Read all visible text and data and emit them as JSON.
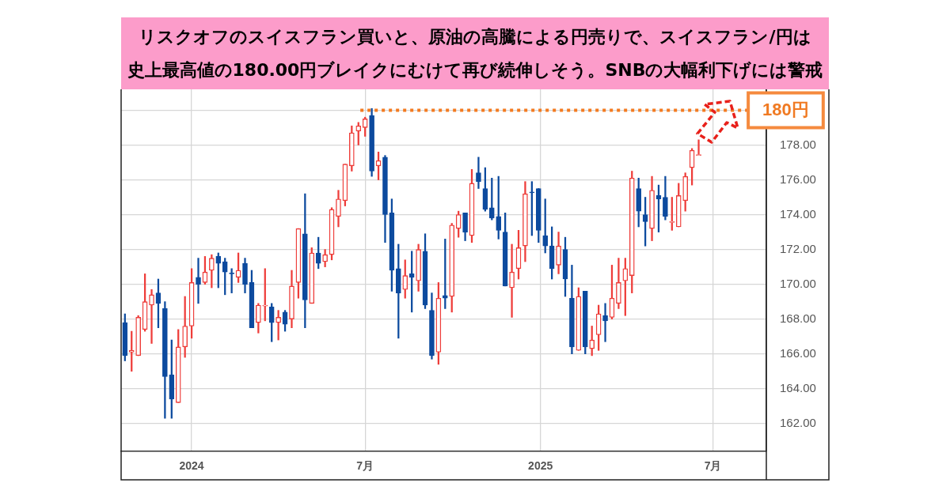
{
  "chart_data": {
    "type": "candlestick",
    "title": "リスクオフのスイスフラン買いと、原油の高騰による円売りで、スイスフラン/円は史上最高値の180.00円ブレイクにむけて再び続伸しそう。SNBの大幅利下げには警戒",
    "x": [
      "2023-10-23",
      "2023-10-30",
      "2023-11-06",
      "2023-11-13",
      "2023-11-20",
      "2023-11-27",
      "2023-12-04",
      "2023-12-11",
      "2023-12-18",
      "2023-12-25",
      "2024-01-01",
      "2024-01-08",
      "2024-01-15",
      "2024-01-22",
      "2024-01-29",
      "2024-02-05",
      "2024-02-12",
      "2024-02-19",
      "2024-02-26",
      "2024-03-04",
      "2024-03-11",
      "2024-03-18",
      "2024-03-25",
      "2024-04-01",
      "2024-04-08",
      "2024-04-15",
      "2024-04-22",
      "2024-04-29",
      "2024-05-06",
      "2024-05-13",
      "2024-05-20",
      "2024-05-27",
      "2024-06-03",
      "2024-06-10",
      "2024-06-17",
      "2024-06-24",
      "2024-07-01",
      "2024-07-08",
      "2024-07-15",
      "2024-07-22",
      "2024-07-29",
      "2024-08-05",
      "2024-08-12",
      "2024-08-19",
      "2024-08-26",
      "2024-09-02",
      "2024-09-09",
      "2024-09-16",
      "2024-09-23",
      "2024-09-30",
      "2024-10-07",
      "2024-10-14",
      "2024-10-21",
      "2024-10-28",
      "2024-11-04",
      "2024-11-11",
      "2024-11-18",
      "2024-11-25",
      "2024-12-02",
      "2024-12-09",
      "2024-12-16",
      "2024-12-23",
      "2024-12-30",
      "2025-01-06",
      "2025-01-13",
      "2025-01-20",
      "2025-01-27",
      "2025-02-03",
      "2025-02-10",
      "2025-02-17",
      "2025-02-24",
      "2025-03-03",
      "2025-03-10",
      "2025-03-17",
      "2025-03-24",
      "2025-03-31",
      "2025-04-07",
      "2025-04-14",
      "2025-04-21",
      "2025-04-28",
      "2025-05-05",
      "2025-05-12",
      "2025-05-19",
      "2025-05-26",
      "2025-06-02",
      "2025-06-09",
      "2025-06-16"
    ],
    "ohlc": [
      [
        167.8,
        168.3,
        165.6,
        165.9
      ],
      [
        166.1,
        167.3,
        165.0,
        166.2
      ],
      [
        165.9,
        168.2,
        165.9,
        168.1
      ],
      [
        167.4,
        170.6,
        167.3,
        169.0
      ],
      [
        168.8,
        169.7,
        166.6,
        169.4
      ],
      [
        169.5,
        170.3,
        167.5,
        168.9
      ],
      [
        168.6,
        169.0,
        162.3,
        164.7
      ],
      [
        164.8,
        166.8,
        162.3,
        163.4
      ],
      [
        163.2,
        167.4,
        163.2,
        166.4
      ],
      [
        166.4,
        169.3,
        165.8,
        167.6
      ],
      [
        167.6,
        170.9,
        166.9,
        170.1
      ],
      [
        170.4,
        171.5,
        168.9,
        170.0
      ],
      [
        170.1,
        171.6,
        170.0,
        170.7
      ],
      [
        170.8,
        171.7,
        169.8,
        171.5
      ],
      [
        171.6,
        171.8,
        169.8,
        171.2
      ],
      [
        171.3,
        171.5,
        169.4,
        170.7
      ],
      [
        170.65,
        170.9,
        169.5,
        170.6
      ],
      [
        170.4,
        171.8,
        170.1,
        170.8
      ],
      [
        171.2,
        171.5,
        169.5,
        170.0
      ],
      [
        170.1,
        170.8,
        167.5,
        167.5
      ],
      [
        167.8,
        168.9,
        167.2,
        168.8
      ],
      [
        168.75,
        170.9,
        167.9,
        168.8
      ],
      [
        168.7,
        168.9,
        166.7,
        167.8
      ],
      [
        167.8,
        168.5,
        166.8,
        168.1
      ],
      [
        168.4,
        168.5,
        167.3,
        167.7
      ],
      [
        168.0,
        170.8,
        167.5,
        169.9
      ],
      [
        170.1,
        173.2,
        169.2,
        173.2
      ],
      [
        172.9,
        175.2,
        167.5,
        169.1
      ],
      [
        168.9,
        172.1,
        168.9,
        171.8
      ],
      [
        171.8,
        172.7,
        170.9,
        171.2
      ],
      [
        171.3,
        172.0,
        171.0,
        171.7
      ],
      [
        171.7,
        174.4,
        171.4,
        174.3
      ],
      [
        173.9,
        175.4,
        173.3,
        174.9
      ],
      [
        174.8,
        176.9,
        174.5,
        176.9
      ],
      [
        176.8,
        179.1,
        176.5,
        178.7
      ],
      [
        178.8,
        179.3,
        178.0,
        179.1
      ],
      [
        179.0,
        179.6,
        178.5,
        179.5
      ],
      [
        179.7,
        180.1,
        176.2,
        176.5
      ],
      [
        176.8,
        177.6,
        176.0,
        177.1
      ],
      [
        177.3,
        177.4,
        172.4,
        174.0
      ],
      [
        174.1,
        174.9,
        169.6,
        170.8
      ],
      [
        170.9,
        172.3,
        166.9,
        169.5
      ],
      [
        169.7,
        171.4,
        169.2,
        170.5
      ],
      [
        170.6,
        171.9,
        168.4,
        170.4
      ],
      [
        170.2,
        172.3,
        169.6,
        172.0
      ],
      [
        171.9,
        172.9,
        168.6,
        168.8
      ],
      [
        168.5,
        169.5,
        165.7,
        165.9
      ],
      [
        166.1,
        170.1,
        165.4,
        169.2
      ],
      [
        169.35,
        172.6,
        168.6,
        169.2
      ],
      [
        169.3,
        173.5,
        168.4,
        173.4
      ],
      [
        173.2,
        174.2,
        172.7,
        174.0
      ],
      [
        174.1,
        174.1,
        172.5,
        173.0
      ],
      [
        172.8,
        176.6,
        172.4,
        175.8
      ],
      [
        176.4,
        177.3,
        175.5,
        175.9
      ],
      [
        175.5,
        176.7,
        174.2,
        174.3
      ],
      [
        174.4,
        176.1,
        173.7,
        173.8
      ],
      [
        173.9,
        176.2,
        172.6,
        173.1
      ],
      [
        173.0,
        174.1,
        169.9,
        169.9
      ],
      [
        169.8,
        172.3,
        168.1,
        170.7
      ],
      [
        170.9,
        173.1,
        170.3,
        172.1
      ],
      [
        172.2,
        175.9,
        171.3,
        175.2
      ],
      [
        175.3,
        175.9,
        172.8,
        175.25
      ],
      [
        175.5,
        175.5,
        172.4,
        173.1
      ],
      [
        172.8,
        174.9,
        171.8,
        172.2
      ],
      [
        172.2,
        173.3,
        170.3,
        170.9
      ],
      [
        171.1,
        173.0,
        170.6,
        172.2
      ],
      [
        172.0,
        172.7,
        169.3,
        170.3
      ],
      [
        169.2,
        171.1,
        166.0,
        166.4
      ],
      [
        166.2,
        169.8,
        166.2,
        169.3
      ],
      [
        169.6,
        169.6,
        166.0,
        166.4
      ],
      [
        166.3,
        167.6,
        165.9,
        166.8
      ],
      [
        167.1,
        168.8,
        166.2,
        168.3
      ],
      [
        168.2,
        168.9,
        166.7,
        167.9
      ],
      [
        168.1,
        171.1,
        168.0,
        169.2
      ],
      [
        168.9,
        171.5,
        168.6,
        170.1
      ],
      [
        170.2,
        171.5,
        168.2,
        170.9
      ],
      [
        170.5,
        176.5,
        169.5,
        176.1
      ],
      [
        175.5,
        176.1,
        173.3,
        174.2
      ],
      [
        174.0,
        175.0,
        172.2,
        173.6
      ],
      [
        173.2,
        176.2,
        172.5,
        175.4
      ],
      [
        175.1,
        175.7,
        173.0,
        174.9
      ],
      [
        175.0,
        176.2,
        173.7,
        173.9
      ],
      [
        173.55,
        175.0,
        173.1,
        173.6
      ],
      [
        173.3,
        175.8,
        173.3,
        175.1
      ],
      [
        174.8,
        176.4,
        174.2,
        176.2
      ],
      [
        176.7,
        177.8,
        175.7,
        177.7
      ],
      [
        177.4,
        178.3,
        177.4,
        177.45
      ]
    ],
    "colors": [
      "#0c4a9e",
      "#ee3d3a",
      "#ee3d3a",
      "#ee3d3a",
      "#ee3d3a",
      "#0c4a9e",
      "#0c4a9e",
      "#0c4a9e",
      "#ee3d3a",
      "#ee3d3a",
      "#ee3d3a",
      "#0c4a9e",
      "#ee3d3a",
      "#ee3d3a",
      "#0c4a9e",
      "#0c4a9e",
      "#0c4a9e",
      "#ee3d3a",
      "#0c4a9e",
      "#0c4a9e",
      "#ee3d3a",
      "#ee3d3a",
      "#0c4a9e",
      "#ee3d3a",
      "#0c4a9e",
      "#ee3d3a",
      "#ee3d3a",
      "#0c4a9e",
      "#ee3d3a",
      "#0c4a9e",
      "#ee3d3a",
      "#ee3d3a",
      "#ee3d3a",
      "#ee3d3a",
      "#ee3d3a",
      "#ee3d3a",
      "#ee3d3a",
      "#0c4a9e",
      "#ee3d3a",
      "#0c4a9e",
      "#0c4a9e",
      "#0c4a9e",
      "#ee3d3a",
      "#0c4a9e",
      "#ee3d3a",
      "#0c4a9e",
      "#0c4a9e",
      "#ee3d3a",
      "#0c4a9e",
      "#ee3d3a",
      "#ee3d3a",
      "#0c4a9e",
      "#ee3d3a",
      "#0c4a9e",
      "#0c4a9e",
      "#0c4a9e",
      "#0c4a9e",
      "#0c4a9e",
      "#ee3d3a",
      "#ee3d3a",
      "#ee3d3a",
      "#0c4a9e",
      "#0c4a9e",
      "#0c4a9e",
      "#0c4a9e",
      "#ee3d3a",
      "#0c4a9e",
      "#0c4a9e",
      "#ee3d3a",
      "#0c4a9e",
      "#ee3d3a",
      "#ee3d3a",
      "#0c4a9e",
      "#ee3d3a",
      "#ee3d3a",
      "#ee3d3a",
      "#ee3d3a",
      "#0c4a9e",
      "#0c4a9e",
      "#ee3d3a",
      "#0c4a9e",
      "#0c4a9e",
      "#ee3d3a",
      "#ee3d3a",
      "#ee3d3a",
      "#ee3d3a",
      "#ee3d3a"
    ],
    "series": [
      {
        "type": "line",
        "x": [
          "2024-06-26",
          "2025-08-07"
        ],
        "values": [
          180,
          180
        ],
        "color": "#f47b20",
        "line_style": "dotted",
        "marker": "none"
      }
    ],
    "annotations": [
      {
        "text": "180円",
        "x": "2025-08-07",
        "y": 180
      }
    ],
    "xlim": [
      "2023-10-19",
      "2025-08-26"
    ],
    "ylim": [
      160.4,
      181.2
    ],
    "xticks": [
      {
        "value": "2024-01-01",
        "label": "2024"
      },
      {
        "value": "2024-07-01",
        "label": "7月"
      },
      {
        "value": "2025-01-01",
        "label": "2025"
      },
      {
        "value": "2025-07-01",
        "label": "7月"
      }
    ],
    "yticks": [
      {
        "value": 162,
        "label": "162.00"
      },
      {
        "value": 164,
        "label": "164.00"
      },
      {
        "value": 166,
        "label": "166.00"
      },
      {
        "value": 168,
        "label": "168.00"
      },
      {
        "value": 170,
        "label": "170.00"
      },
      {
        "value": 172,
        "label": "172.00"
      },
      {
        "value": 174,
        "label": "174.00"
      },
      {
        "value": 176,
        "label": "176.00"
      },
      {
        "value": 178,
        "label": "178.00"
      },
      {
        "value": 180,
        "label": null
      }
    ],
    "grid": true
  }
}
